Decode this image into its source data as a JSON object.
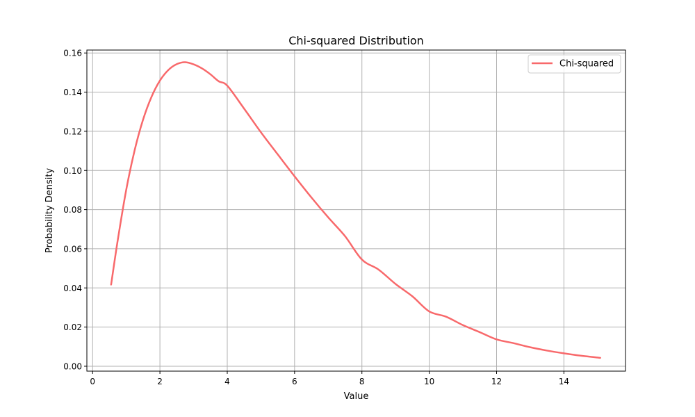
{
  "chart_data": {
    "type": "line",
    "title": "Chi-squared Distribution",
    "xlabel": "Value",
    "ylabel": "Probability Density",
    "xlim": [
      -0.17,
      15.83
    ],
    "ylim": [
      -0.0025,
      0.1615
    ],
    "xticks": [
      0,
      2,
      4,
      6,
      8,
      10,
      12,
      14
    ],
    "xtick_labels": [
      "0",
      "2",
      "4",
      "6",
      "8",
      "10",
      "12",
      "14"
    ],
    "yticks": [
      0.0,
      0.02,
      0.04,
      0.06,
      0.08,
      0.1,
      0.12,
      0.14,
      0.16
    ],
    "ytick_labels": [
      "0.00",
      "0.02",
      "0.04",
      "0.06",
      "0.08",
      "0.10",
      "0.12",
      "0.14",
      "0.16"
    ],
    "grid": true,
    "legend_position": "top-right",
    "series": [
      {
        "name": "Chi-squared",
        "color": "#f8696b",
        "x": [
          0.55,
          0.75,
          1.0,
          1.25,
          1.5,
          1.75,
          2.0,
          2.25,
          2.5,
          2.75,
          3.0,
          3.25,
          3.5,
          3.75,
          4.0,
          4.5,
          5.0,
          5.5,
          6.0,
          6.5,
          7.0,
          7.5,
          8.0,
          8.5,
          9.0,
          9.5,
          10.0,
          10.5,
          11.0,
          11.5,
          12.0,
          12.5,
          13.0,
          13.5,
          14.0,
          14.5,
          15.08
        ],
        "y": [
          0.0417,
          0.0647,
          0.0902,
          0.1104,
          0.126,
          0.1376,
          0.1459,
          0.1513,
          0.1543,
          0.1553,
          0.1542,
          0.1521,
          0.1491,
          0.1455,
          0.1433,
          0.1316,
          0.1195,
          0.1082,
          0.097,
          0.0862,
          0.076,
          0.0664,
          0.0545,
          0.0493,
          0.042,
          0.0357,
          0.028,
          0.0253,
          0.021,
          0.0174,
          0.0137,
          0.0118,
          0.0097,
          0.008,
          0.0066,
          0.0054,
          0.0043
        ]
      }
    ]
  }
}
